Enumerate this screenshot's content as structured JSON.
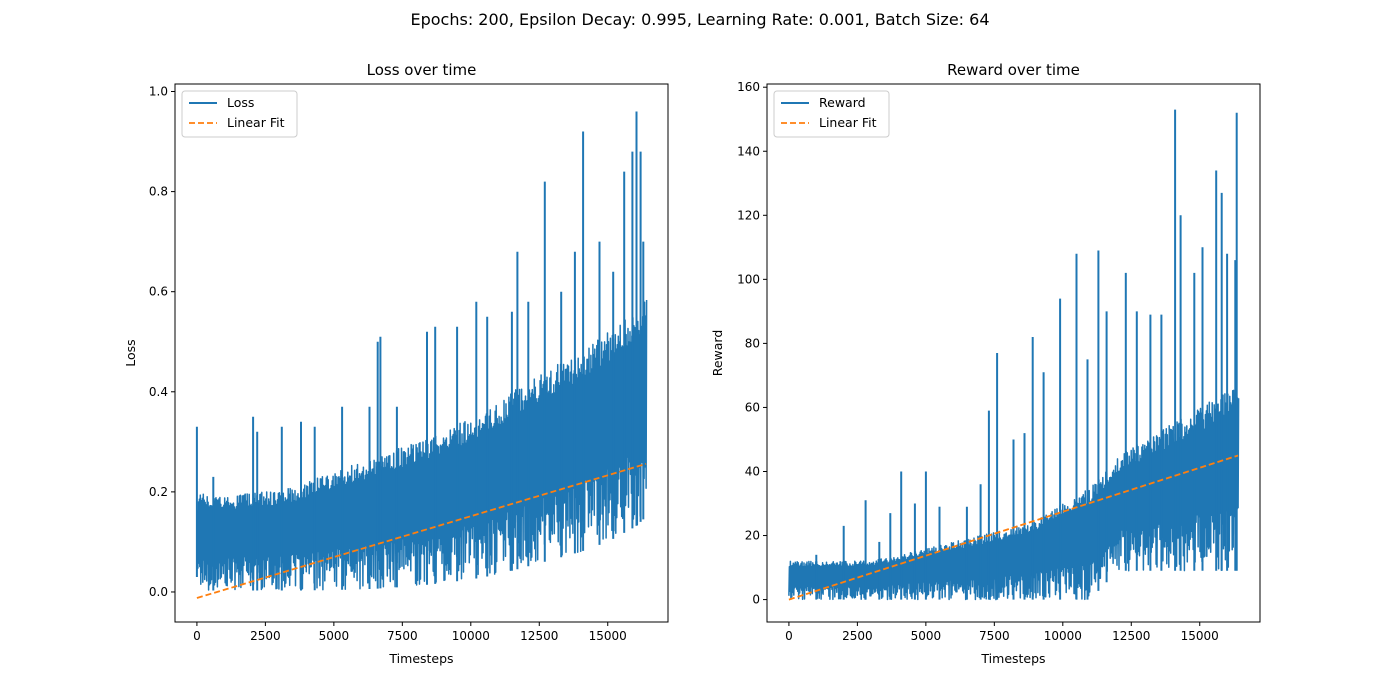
{
  "figure_title": "Epochs: 200, Epsilon Decay: 0.995, Learning Rate: 0.001, Batch Size: 64",
  "chart_data": [
    {
      "type": "line",
      "title": "Loss over time",
      "xlabel": "Timesteps",
      "ylabel": "Loss",
      "xlim": [
        -800,
        17200
      ],
      "ylim": [
        -0.06,
        1.015
      ],
      "xticks": [
        0,
        2500,
        5000,
        7500,
        10000,
        12500,
        15000
      ],
      "xtick_labels": [
        "0",
        "2500",
        "5000",
        "7500",
        "10000",
        "12500",
        "15000"
      ],
      "yticks": [
        0.0,
        0.2,
        0.4,
        0.6,
        0.8,
        1.0
      ],
      "ytick_labels": [
        "0.0",
        "0.2",
        "0.4",
        "0.6",
        "0.8",
        "1.0"
      ],
      "legend_position": "top-left",
      "grid": false,
      "series": [
        {
          "name": "Loss",
          "style": "solid",
          "color": "#1f77b4",
          "x_max": 16400,
          "envelope_x": [
            0,
            100,
            500,
            1000,
            2000,
            3000,
            4000,
            5000,
            6000,
            7000,
            8000,
            9000,
            10000,
            11000,
            12000,
            13000,
            14000,
            15000,
            16000,
            16400
          ],
          "low": [
            0.03,
            0.005,
            0.003,
            0.003,
            0.003,
            0.003,
            0.003,
            0.004,
            0.005,
            0.008,
            0.012,
            0.018,
            0.025,
            0.035,
            0.05,
            0.065,
            0.08,
            0.1,
            0.13,
            0.15
          ],
          "high": [
            0.18,
            0.2,
            0.19,
            0.19,
            0.2,
            0.2,
            0.22,
            0.24,
            0.26,
            0.28,
            0.3,
            0.32,
            0.35,
            0.38,
            0.42,
            0.45,
            0.48,
            0.52,
            0.56,
            0.6
          ],
          "peaks": [
            [
              0,
              0.33
            ],
            [
              600,
              0.23
            ],
            [
              2050,
              0.35
            ],
            [
              2200,
              0.32
            ],
            [
              3100,
              0.33
            ],
            [
              3800,
              0.34
            ],
            [
              4300,
              0.33
            ],
            [
              5300,
              0.37
            ],
            [
              6300,
              0.37
            ],
            [
              6600,
              0.5
            ],
            [
              6700,
              0.51
            ],
            [
              7300,
              0.37
            ],
            [
              8400,
              0.52
            ],
            [
              8700,
              0.53
            ],
            [
              9500,
              0.53
            ],
            [
              10200,
              0.58
            ],
            [
              10600,
              0.55
            ],
            [
              11500,
              0.56
            ],
            [
              11700,
              0.68
            ],
            [
              12100,
              0.58
            ],
            [
              12700,
              0.82
            ],
            [
              13300,
              0.6
            ],
            [
              13800,
              0.68
            ],
            [
              14100,
              0.92
            ],
            [
              14700,
              0.7
            ],
            [
              15200,
              0.64
            ],
            [
              15600,
              0.84
            ],
            [
              15900,
              0.88
            ],
            [
              16050,
              0.96
            ],
            [
              16200,
              0.88
            ],
            [
              16300,
              0.7
            ]
          ]
        },
        {
          "name": "Linear Fit",
          "style": "dashed",
          "color": "#ff7f0e",
          "x": [
            0,
            16400
          ],
          "y": [
            -0.012,
            0.256
          ]
        }
      ]
    },
    {
      "type": "line",
      "title": "Reward over time",
      "xlabel": "Timesteps",
      "ylabel": "Reward",
      "xlim": [
        -800,
        17200
      ],
      "ylim": [
        -7,
        161
      ],
      "xticks": [
        0,
        2500,
        5000,
        7500,
        10000,
        12500,
        15000
      ],
      "xtick_labels": [
        "0",
        "2500",
        "5000",
        "7500",
        "10000",
        "12500",
        "15000"
      ],
      "yticks": [
        0,
        20,
        40,
        60,
        80,
        100,
        120,
        140,
        160
      ],
      "ytick_labels": [
        "0",
        "20",
        "40",
        "60",
        "80",
        "100",
        "120",
        "140",
        "160"
      ],
      "legend_position": "top-left",
      "grid": false,
      "series": [
        {
          "name": "Reward",
          "style": "solid",
          "color": "#1f77b4",
          "x_max": 16400,
          "envelope_x": [
            0,
            1000,
            2000,
            3000,
            4000,
            5000,
            6000,
            7000,
            8000,
            9000,
            10000,
            11000,
            12000,
            13000,
            14000,
            15000,
            16000,
            16400
          ],
          "low": [
            0,
            0,
            0,
            0,
            0,
            0,
            0,
            0,
            0,
            0,
            0,
            0,
            9,
            9,
            9,
            9,
            9,
            9
          ],
          "high": [
            12,
            12,
            12,
            12,
            14,
            16,
            18,
            20,
            22,
            25,
            30,
            35,
            45,
            50,
            55,
            60,
            65,
            70
          ],
          "peaks": [
            [
              1000,
              14
            ],
            [
              2000,
              23
            ],
            [
              2800,
              31
            ],
            [
              3300,
              18
            ],
            [
              3700,
              27
            ],
            [
              4100,
              40
            ],
            [
              4600,
              30
            ],
            [
              5000,
              40
            ],
            [
              5500,
              29
            ],
            [
              6500,
              29
            ],
            [
              7000,
              36
            ],
            [
              7300,
              59
            ],
            [
              7600,
              77
            ],
            [
              8200,
              50
            ],
            [
              8600,
              52
            ],
            [
              8900,
              82
            ],
            [
              9300,
              71
            ],
            [
              9900,
              94
            ],
            [
              10500,
              108
            ],
            [
              10900,
              75
            ],
            [
              11300,
              109
            ],
            [
              11600,
              90
            ],
            [
              12300,
              102
            ],
            [
              12700,
              90
            ],
            [
              13200,
              89
            ],
            [
              13600,
              89
            ],
            [
              14100,
              153
            ],
            [
              14300,
              120
            ],
            [
              14800,
              102
            ],
            [
              15100,
              110
            ],
            [
              15600,
              134
            ],
            [
              15800,
              127
            ],
            [
              16000,
              108
            ],
            [
              16300,
              106
            ],
            [
              16350,
              152
            ]
          ]
        },
        {
          "name": "Linear Fit",
          "style": "dashed",
          "color": "#ff7f0e",
          "x": [
            0,
            16400
          ],
          "y": [
            0,
            45
          ]
        }
      ]
    }
  ]
}
